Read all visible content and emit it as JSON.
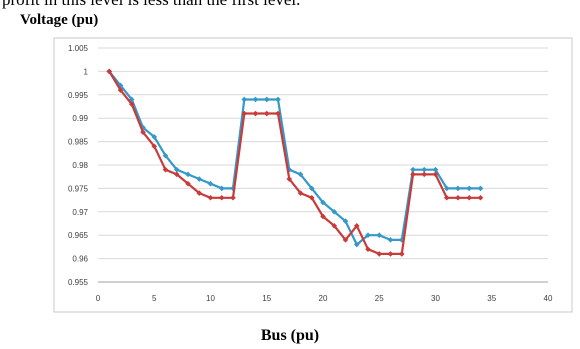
{
  "caption_fragment": "profit in this level is less than the first level.",
  "chart_data": {
    "type": "line",
    "ylabel": "Voltage (pu)",
    "xlabel": "Bus (pu)",
    "xlim": [
      0,
      40
    ],
    "ylim": [
      0.955,
      1.005
    ],
    "xticks": [
      "0",
      "5",
      "10",
      "15",
      "20",
      "25",
      "30",
      "35",
      "40"
    ],
    "yticks": [
      "0.955",
      "0.96",
      "0.965",
      "0.97",
      "0.975",
      "0.98",
      "0.985",
      "0.99",
      "0.995",
      "1",
      "1.005"
    ],
    "grid": "horizontal",
    "legend": "none",
    "x": [
      1,
      2,
      3,
      4,
      5,
      6,
      7,
      8,
      9,
      10,
      11,
      12,
      13,
      14,
      15,
      16,
      17,
      18,
      19,
      20,
      21,
      22,
      23,
      24,
      25,
      26,
      27,
      28,
      29,
      30,
      31,
      32,
      33,
      34
    ],
    "series": [
      {
        "color": "#3498c9",
        "values": [
          1.0,
          0.997,
          0.994,
          0.988,
          0.986,
          0.982,
          0.979,
          0.978,
          0.977,
          0.976,
          0.975,
          0.975,
          0.994,
          0.994,
          0.994,
          0.994,
          0.979,
          0.978,
          0.975,
          0.972,
          0.97,
          0.968,
          0.963,
          0.965,
          0.965,
          0.964,
          0.964,
          0.979,
          0.979,
          0.979,
          0.975,
          0.975,
          0.975,
          0.975
        ]
      },
      {
        "color": "#c93a3a",
        "values": [
          1.0,
          0.996,
          0.993,
          0.987,
          0.984,
          0.979,
          0.978,
          0.976,
          0.974,
          0.973,
          0.973,
          0.973,
          0.991,
          0.991,
          0.991,
          0.991,
          0.977,
          0.974,
          0.973,
          0.969,
          0.967,
          0.964,
          0.967,
          0.962,
          0.961,
          0.961,
          0.961,
          0.978,
          0.978,
          0.978,
          0.973,
          0.973,
          0.973,
          0.973
        ]
      }
    ]
  }
}
